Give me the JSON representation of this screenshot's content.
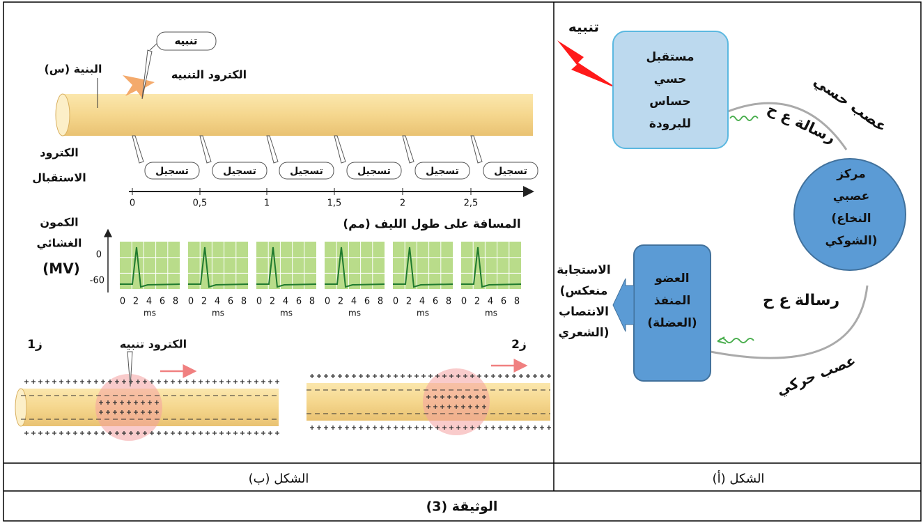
{
  "figure_a": {
    "stimulus": "تنبيه",
    "receptor": [
      "مستقبل",
      "حسي",
      "حساس",
      "للبرودة"
    ],
    "sensory_nerve": "عصب حسي",
    "message_1": "رسالة ع ح",
    "center": [
      "مركز",
      "عصبي",
      "(النخاع",
      "الشوكي)"
    ],
    "message_2": "رسالة ع ح",
    "effector": [
      "العضو",
      "المنفذ",
      "(العضلة)"
    ],
    "response": [
      "الاستجابة",
      "(منعكس",
      "الانتصاب",
      "الشعري)"
    ],
    "motor_nerve": "عصب حركي",
    "caption": "الشكل (أ)"
  },
  "figure_b": {
    "stimulus": "تنبيه",
    "stim_electrode": "الكترود التنبيه",
    "structure": "البنية (س)",
    "rec_electrode": [
      "الكترود",
      "الاستقبال"
    ],
    "recordings": [
      "تسجيل",
      "تسجيل",
      "تسجيل",
      "تسجيل",
      "تسجيل",
      "تسجيل"
    ],
    "distance_ticks": [
      "0",
      "0,5",
      "1",
      "1,5",
      "2",
      "2,5"
    ],
    "distance_label": "المسافة على طول الليف (مم)",
    "potential_label": [
      "الكمون",
      "الغشائي",
      "(MV)"
    ],
    "potential_ticks": [
      "0",
      "-60"
    ],
    "time_ticks": [
      "0",
      "2",
      "4",
      "6",
      "8"
    ],
    "time_unit": "ms",
    "z1": "ز1",
    "z1_electrode": "الكترود تنبيه",
    "z2": "ز2",
    "caption": "الشكل (ب)"
  },
  "document_title": "الوثيقة (3)"
}
